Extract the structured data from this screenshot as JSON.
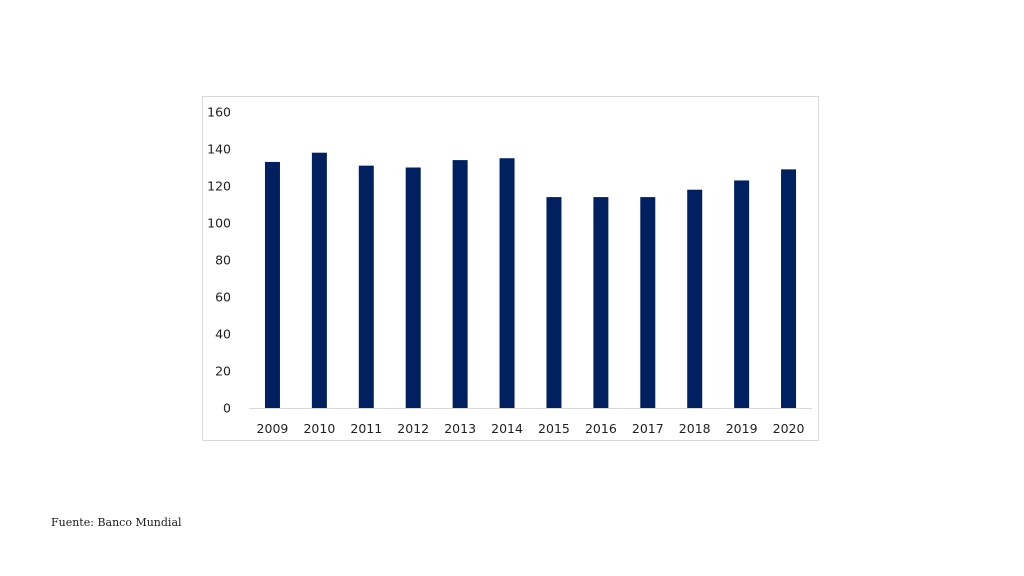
{
  "chart_data": {
    "type": "bar",
    "categories": [
      "2009",
      "2010",
      "2011",
      "2012",
      "2013",
      "2014",
      "2015",
      "2016",
      "2017",
      "2018",
      "2019",
      "2020"
    ],
    "values": [
      133,
      138,
      131,
      130,
      134,
      135,
      114,
      114,
      114,
      118,
      123,
      129
    ],
    "ylim": [
      0,
      160
    ],
    "yticks": [
      0,
      20,
      40,
      60,
      80,
      100,
      120,
      140,
      160
    ],
    "bar_color": "#002060",
    "grid": false,
    "title": "",
    "xlabel": "",
    "ylabel": ""
  },
  "footer": {
    "source": "Fuente: Banco Mundial"
  }
}
